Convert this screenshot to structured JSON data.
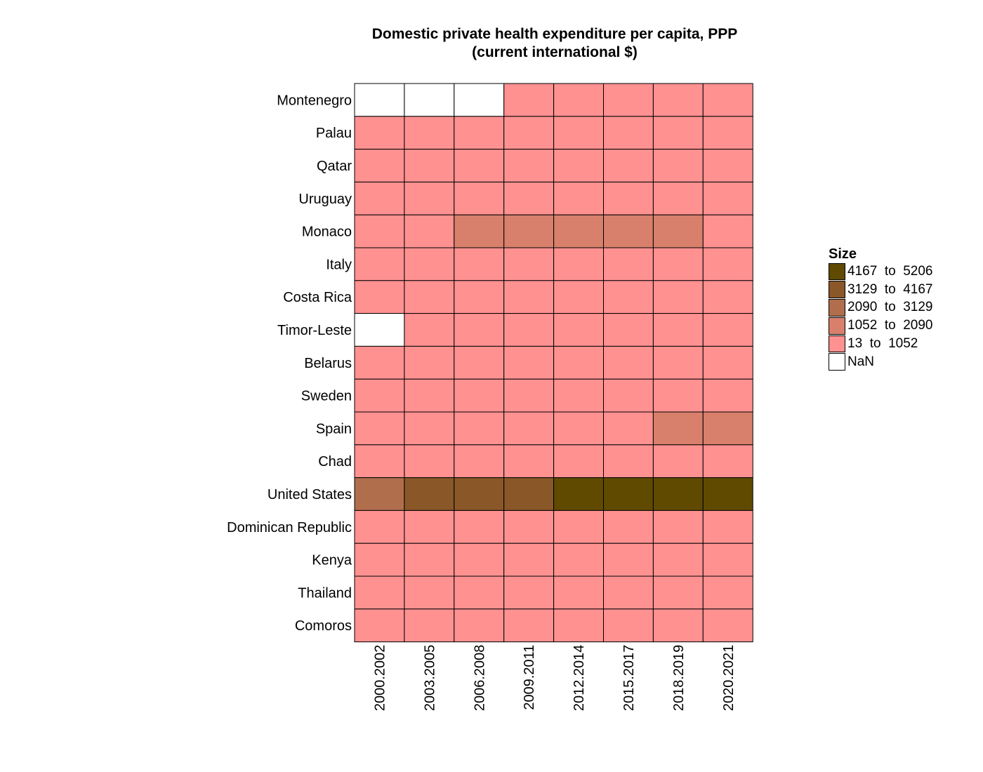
{
  "chart_data": {
    "type": "heatmap",
    "title": [
      "Domestic private health expenditure per capita, PPP",
      "(current international $)"
    ],
    "x_categories": [
      "2000.2002",
      "2003.2005",
      "2006.2008",
      "2009.2011",
      "2012.2014",
      "2015.2017",
      "2018.2019",
      "2020.2021"
    ],
    "y_categories": [
      "Montenegro",
      "Palau",
      "Qatar",
      "Uruguay",
      "Monaco",
      "Italy",
      "Costa Rica",
      "Timor-Leste",
      "Belarus",
      "Sweden",
      "Spain",
      "Chad",
      "United States",
      "Dominican Republic",
      "Kenya",
      "Thailand",
      "Comoros"
    ],
    "bin_index": [
      [
        5,
        5,
        5,
        4,
        4,
        4,
        4,
        4
      ],
      [
        4,
        4,
        4,
        4,
        4,
        4,
        4,
        4
      ],
      [
        4,
        4,
        4,
        4,
        4,
        4,
        4,
        4
      ],
      [
        4,
        4,
        4,
        4,
        4,
        4,
        4,
        4
      ],
      [
        4,
        4,
        3,
        3,
        3,
        3,
        3,
        4
      ],
      [
        4,
        4,
        4,
        4,
        4,
        4,
        4,
        4
      ],
      [
        4,
        4,
        4,
        4,
        4,
        4,
        4,
        4
      ],
      [
        5,
        4,
        4,
        4,
        4,
        4,
        4,
        4
      ],
      [
        4,
        4,
        4,
        4,
        4,
        4,
        4,
        4
      ],
      [
        4,
        4,
        4,
        4,
        4,
        4,
        4,
        4
      ],
      [
        4,
        4,
        4,
        4,
        4,
        4,
        3,
        3
      ],
      [
        4,
        4,
        4,
        4,
        4,
        4,
        4,
        4
      ],
      [
        2,
        1,
        1,
        1,
        0,
        0,
        0,
        0
      ],
      [
        4,
        4,
        4,
        4,
        4,
        4,
        4,
        4
      ],
      [
        4,
        4,
        4,
        4,
        4,
        4,
        4,
        4
      ],
      [
        4,
        4,
        4,
        4,
        4,
        4,
        4,
        4
      ],
      [
        4,
        4,
        4,
        4,
        4,
        4,
        4,
        4
      ]
    ],
    "legend": {
      "title": "Size",
      "placement": "right",
      "items": [
        {
          "label": "4167  to  5206",
          "color": "#5f4a00"
        },
        {
          "label": "3129  to  4167",
          "color": "#8a5728"
        },
        {
          "label": "2090  to  3129",
          "color": "#b06e4c"
        },
        {
          "label": "1052  to  2090",
          "color": "#d8806c"
        },
        {
          "label": "13  to  1052",
          "color": "#ff9191"
        },
        {
          "label": "NaN",
          "color": "#ffffff"
        }
      ]
    }
  }
}
